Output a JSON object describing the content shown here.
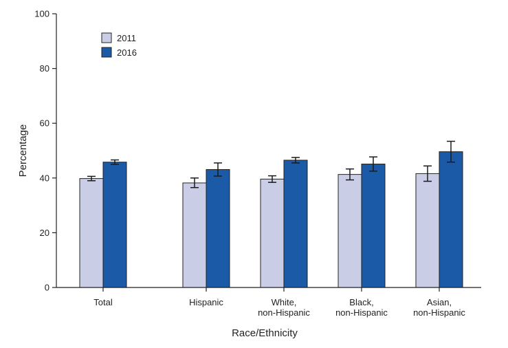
{
  "colors": {
    "series_2011": "#c9cde6",
    "series_2016": "#1a5aa6",
    "axis": "#222222",
    "errorbar": "#1a1a1a"
  },
  "chart_data": {
    "type": "bar",
    "title": "",
    "xlabel": "Race/Ethnicity",
    "ylabel": "Percentage",
    "ylim": [
      0,
      100
    ],
    "yticks": [
      "0",
      "20",
      "40",
      "60",
      "80",
      "100"
    ],
    "categories": [
      [
        "Total"
      ],
      [
        "Hispanic"
      ],
      [
        "White,",
        "non-Hispanic"
      ],
      [
        "Black,",
        "non-Hispanic"
      ],
      [
        "Asian,",
        "non-Hispanic"
      ]
    ],
    "series": [
      {
        "name": "2011",
        "values": [
          39.8,
          38.2,
          39.6,
          41.3,
          41.6
        ],
        "error_low": [
          39.0,
          36.5,
          38.4,
          39.3,
          38.8
        ],
        "error_high": [
          40.6,
          40.0,
          40.8,
          43.3,
          44.4
        ]
      },
      {
        "name": "2016",
        "values": [
          45.8,
          43.1,
          46.5,
          45.1,
          49.6
        ],
        "error_low": [
          45.0,
          40.7,
          45.5,
          42.5,
          45.8
        ],
        "error_high": [
          46.6,
          45.5,
          47.5,
          47.7,
          53.4
        ]
      }
    ],
    "legend": {
      "placement": "top-left",
      "entries": [
        "2011",
        "2016"
      ]
    },
    "grid": false,
    "error_bars": true
  }
}
